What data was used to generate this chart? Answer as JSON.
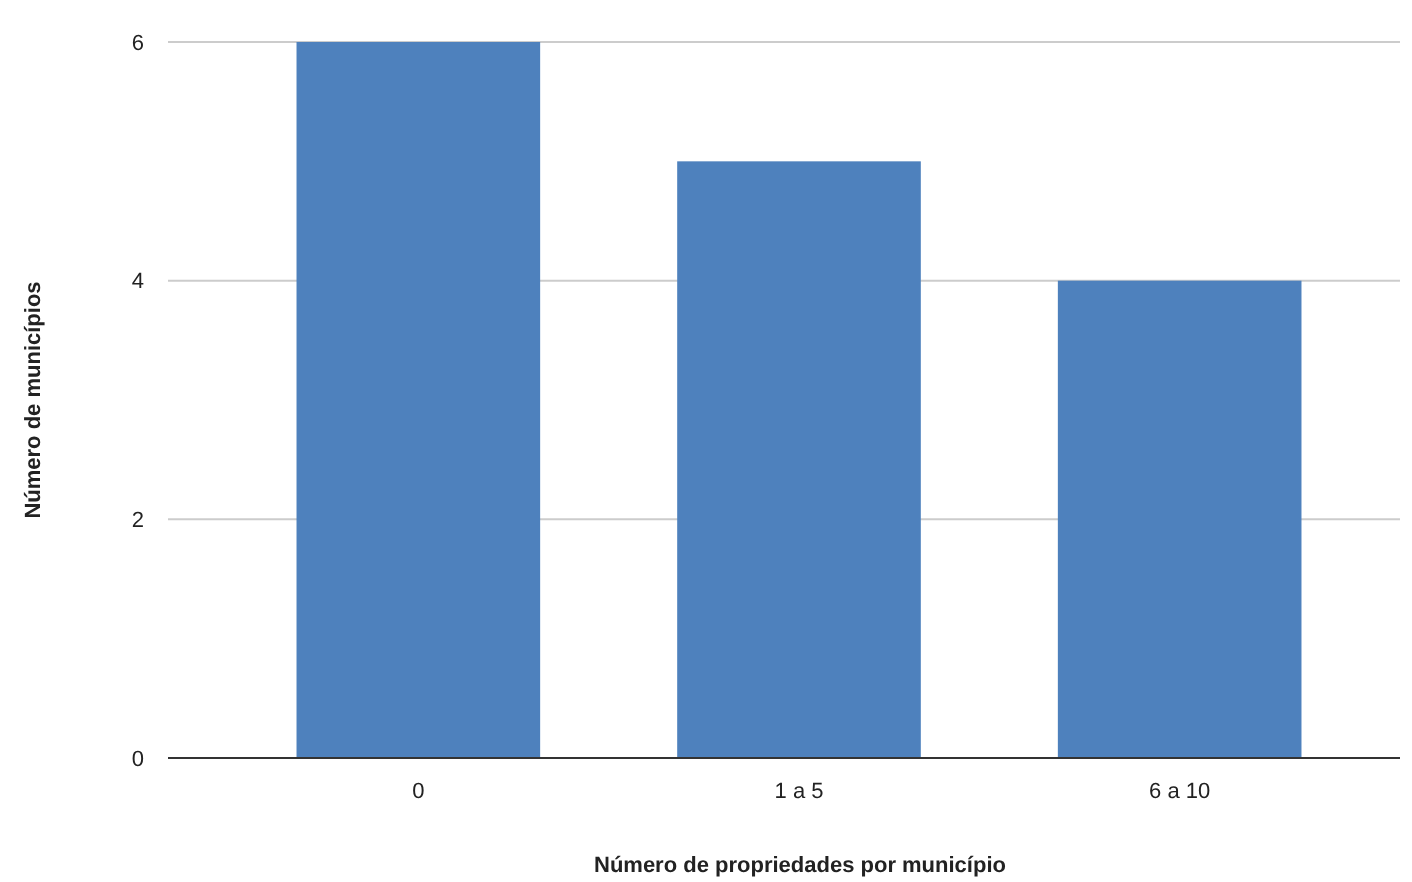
{
  "chart_data": {
    "type": "bar",
    "xlabel": "Número de propriedades por município",
    "ylabel": "Número de municípios",
    "categories": [
      "0",
      "1 a 5",
      "6 a 10"
    ],
    "values": [
      6,
      5,
      4
    ],
    "color": "#4e81bd",
    "ylim": [
      0,
      6
    ],
    "yticks": [
      0,
      2,
      4,
      6
    ],
    "grid": "y"
  }
}
